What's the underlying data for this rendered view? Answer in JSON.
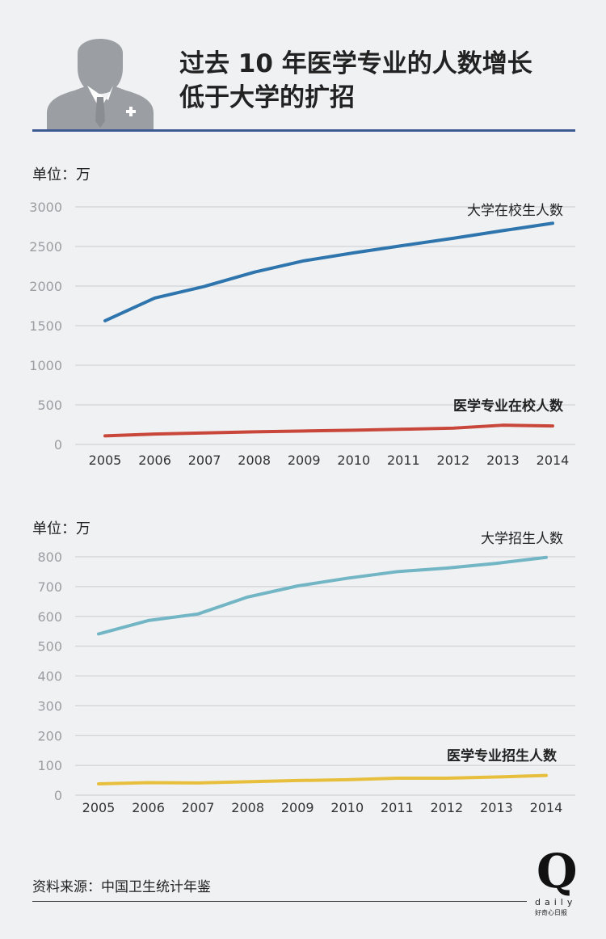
{
  "header": {
    "title_line1": "过去 10 年医学专业的人数增长",
    "title_line2": "低于大学的扩招",
    "icon": "businessman-avatar-icon"
  },
  "footer": {
    "source": "资料来源：中国卫生统计年鉴",
    "logo_q": "Q",
    "logo_daily": "daily",
    "logo_cn": "好奇心日报"
  },
  "chart_data": [
    {
      "type": "line",
      "unit_label": "单位：万",
      "x": [
        "2005",
        "2006",
        "2007",
        "2008",
        "2009",
        "2010",
        "2011",
        "2012",
        "2013",
        "2014"
      ],
      "ylim": [
        0,
        3000
      ],
      "yticks": [
        0,
        500,
        1000,
        1500,
        2000,
        2500,
        3000
      ],
      "grid": true,
      "series": [
        {
          "name": "大学在校生人数",
          "color": "#2e75ad",
          "values": [
            1562,
            1849,
            1996,
            2175,
            2319,
            2420,
            2513,
            2603,
            2700,
            2793
          ]
        },
        {
          "name": "医学专业在校人数",
          "color": "#c8473a",
          "values": [
            108,
            132,
            145,
            160,
            170,
            180,
            192,
            206,
            243,
            234
          ]
        }
      ]
    },
    {
      "type": "line",
      "unit_label": "单位：万",
      "x": [
        "2005",
        "2006",
        "2007",
        "2008",
        "2009",
        "2010",
        "2011",
        "2012",
        "2013",
        "2014"
      ],
      "ylim": [
        0,
        800
      ],
      "yticks": [
        0,
        100,
        200,
        300,
        400,
        500,
        600,
        700,
        800
      ],
      "grid": true,
      "series": [
        {
          "name": "大学招生人数",
          "color": "#72b5c4",
          "values": [
            541,
            586,
            608,
            665,
            702,
            728,
            750,
            762,
            778,
            798
          ]
        },
        {
          "name": "医学专业招生人数",
          "color": "#e7bf3c",
          "values": [
            38,
            42,
            41,
            45,
            49,
            52,
            57,
            57,
            61,
            66
          ]
        }
      ]
    }
  ]
}
